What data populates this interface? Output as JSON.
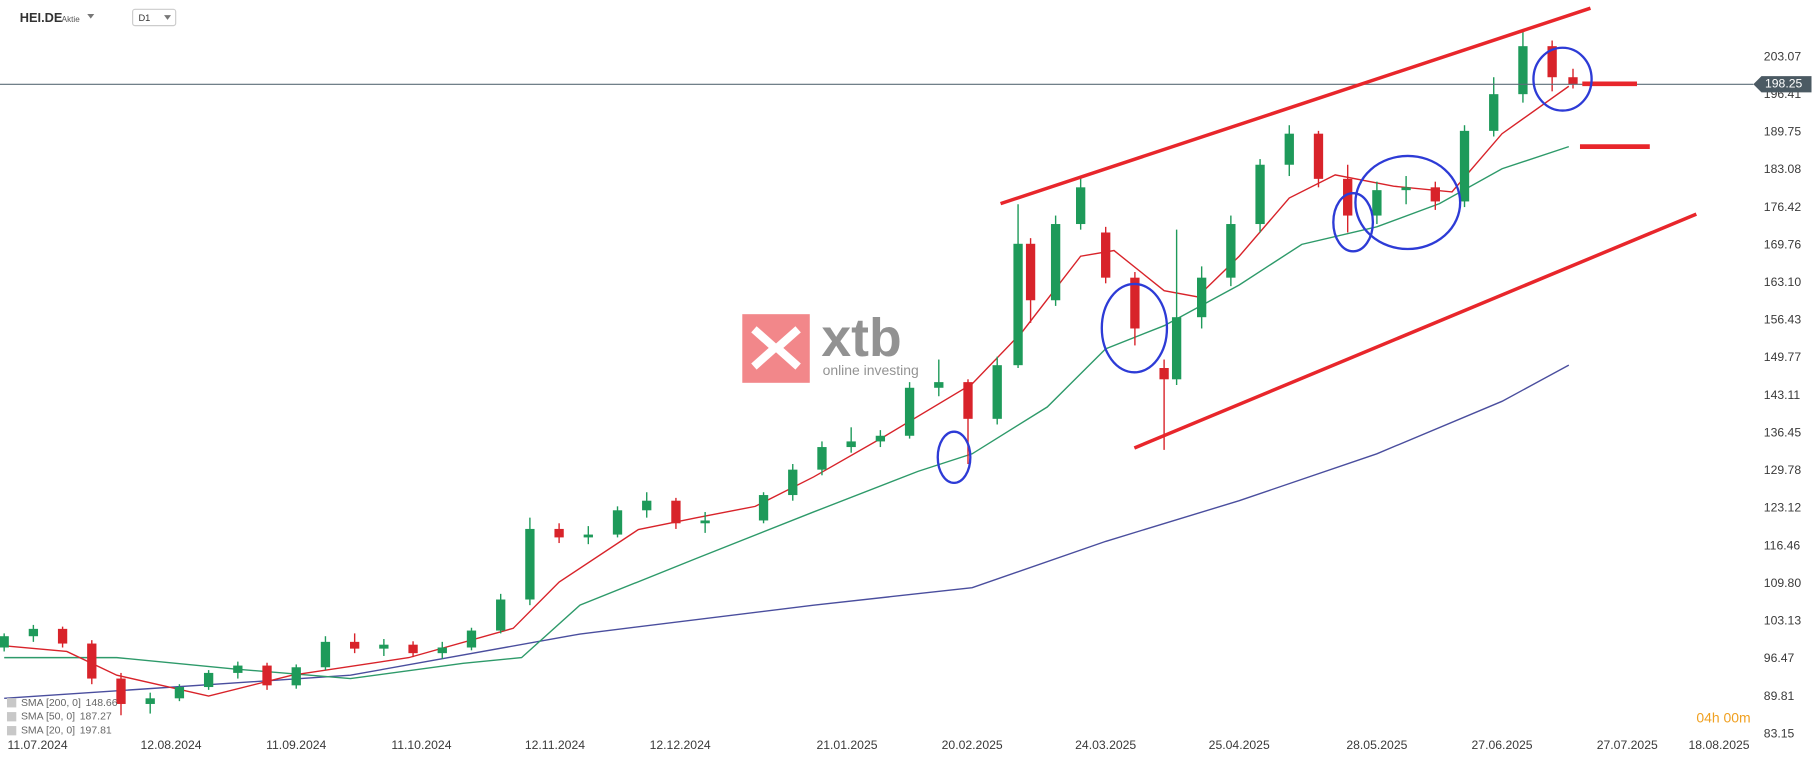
{
  "chart_data": {
    "type": "candlestick",
    "title": "HEI.DE",
    "subtitle": "Aktie",
    "interval": "D1",
    "countdown": "04h 00m",
    "watermark": {
      "brand": "xtb",
      "tagline": "online investing"
    },
    "up_color": "#1e9a5a",
    "down_color": "#d8232a",
    "xlim": [
      "02.07.2024",
      "10.09.2025"
    ],
    "xticks": [
      "11.07.2024",
      "12.08.2024",
      "11.09.2024",
      "11.10.2024",
      "12.11.2024",
      "12.12.2024",
      "21.01.2025",
      "20.02.2025",
      "24.03.2025",
      "25.04.2025",
      "28.05.2025",
      "27.06.2025",
      "27.07.2025",
      "18.08.2025"
    ],
    "ylim": [
      78.76,
      213.17
    ],
    "yticks": [
      203.07,
      196.41,
      189.75,
      183.08,
      176.42,
      169.76,
      {
        "value": 163.1,
        "label": "163.10"
      },
      156.43,
      149.77,
      143.11,
      136.45,
      129.78,
      123.12,
      116.46,
      {
        "value": 109.8,
        "label": "109.80"
      },
      103.13,
      96.47,
      89.81,
      83.15
    ],
    "candles": {
      "x": [
        "03.07.2024",
        "10.07.2024",
        "17.07.2024",
        "24.07.2024",
        "31.07.2024",
        "07.08.2024",
        "14.08.2024",
        "21.08.2024",
        "28.08.2024",
        "04.09.2024",
        "11.09.2024",
        "18.09.2024",
        "25.09.2024",
        "02.10.2024",
        "09.10.2024",
        "16.10.2024",
        "23.10.2024",
        "30.10.2024",
        "06.11.2024",
        "13.11.2024",
        "20.11.2024",
        "27.11.2024",
        "04.12.2024",
        "11.12.2024",
        "18.12.2024",
        "01.01.2025",
        "08.01.2025",
        "15.01.2025",
        "22.01.2025",
        "29.01.2025",
        "05.02.2025",
        "12.02.2025",
        "19.02.2025",
        "26.02.2025",
        "03.03.2025",
        "06.03.2025",
        "12.03.2025",
        "18.03.2025",
        "24.03.2025",
        "31.03.2025",
        "07.04.2025",
        "10.04.2025",
        "16.04.2025",
        "23.04.2025",
        "30.04.2025",
        "07.05.2025",
        "14.05.2025",
        "21.05.2025",
        "28.05.2025",
        "04.06.2025",
        "11.06.2025",
        "18.06.2025",
        "25.06.2025",
        "02.07.2025",
        "09.07.2025",
        "14.07.2025"
      ],
      "open": [
        98.5,
        100.5,
        101.8,
        99.2,
        93,
        88.5,
        89.5,
        91.5,
        94,
        95.3,
        91.8,
        95,
        99.5,
        98.3,
        99,
        97.5,
        98.5,
        101.5,
        107,
        119.5,
        118,
        118.5,
        122.8,
        124.5,
        120.5,
        121,
        125.5,
        130,
        134,
        135,
        136,
        144.5,
        145.5,
        139,
        148.5,
        170,
        160,
        173.5,
        172,
        164,
        148,
        146,
        157,
        164,
        173.5,
        184,
        189.5,
        181.5,
        175,
        179.5,
        180,
        177.5,
        190,
        196.5,
        205,
        199.5
      ],
      "high": [
        101,
        102.5,
        102.2,
        99.8,
        94,
        90.5,
        92,
        94.5,
        96,
        95.8,
        95.5,
        100.5,
        101,
        100,
        99.6,
        99.5,
        102,
        108,
        121.5,
        120.5,
        120,
        123.5,
        126,
        125,
        122.5,
        126,
        131,
        135,
        137.5,
        137,
        145.5,
        149.5,
        146,
        150,
        177,
        171,
        175,
        182,
        173,
        165,
        149.5,
        172.5,
        166,
        175,
        185,
        191,
        190,
        184,
        181,
        182,
        181,
        191,
        199.5,
        207.5,
        206,
        201
      ],
      "low": [
        97.8,
        99.5,
        98.5,
        92,
        86.5,
        86.8,
        89,
        91,
        93,
        91,
        91.2,
        94.5,
        97.5,
        97,
        96.8,
        96.5,
        98,
        101,
        106,
        117,
        116.8,
        118,
        121.5,
        119.5,
        118.8,
        120.5,
        124.5,
        129,
        133,
        134,
        135.5,
        143,
        131,
        138,
        148,
        156,
        159,
        172.5,
        163,
        152,
        133.5,
        145,
        155,
        162.5,
        172,
        182,
        180,
        172,
        173.5,
        177,
        176,
        176.5,
        189,
        195,
        197,
        197.5
      ],
      "close": [
        100.5,
        101.8,
        99.2,
        93,
        88.5,
        89.5,
        91.5,
        94,
        95.3,
        91.8,
        95,
        99.5,
        98.3,
        99,
        97.5,
        98.5,
        101.5,
        107,
        119.5,
        118,
        118.5,
        122.8,
        124.5,
        120.5,
        121,
        125.5,
        130,
        134,
        135,
        136,
        144.5,
        145.5,
        139,
        148.5,
        170,
        160,
        173.5,
        180,
        164,
        155,
        146,
        157,
        164,
        173.5,
        184,
        189.5,
        181.5,
        175,
        179.5,
        180,
        177.5,
        190,
        196.5,
        205,
        199.5,
        198.25
      ]
    },
    "series": [
      {
        "name": "SMA [200, 0]",
        "legend_value": 148.66,
        "color": "#4a4e9e",
        "x": [
          "03.07.2024",
          "24.09.2024",
          "18.11.2024",
          "13.01.2025",
          "20.02.2025",
          "24.03.2025",
          "25.04.2025",
          "28.05.2025",
          "27.06.2025",
          "13.07.2025"
        ],
        "values": [
          89.5,
          93.6,
          100.9,
          106,
          109.1,
          117.3,
          124.5,
          132.8,
          142.1,
          148.5
        ]
      },
      {
        "name": "SMA [50, 0]",
        "legend_value": 187.27,
        "color": "#2e9a6a",
        "x": [
          "03.07.2024",
          "30.07.2024",
          "27.08.2024",
          "24.09.2024",
          "21.10.2024",
          "04.11.2024",
          "18.11.2024",
          "16.12.2024",
          "13.01.2025",
          "07.02.2025",
          "20.02.2025",
          "10.03.2025",
          "24.03.2025",
          "07.04.2025",
          "25.04.2025",
          "10.05.2025",
          "28.05.2025",
          "12.06.2025",
          "27.06.2025",
          "13.07.2025"
        ],
        "values": [
          96.7,
          96.7,
          94.7,
          93,
          95.7,
          96.7,
          106,
          114.3,
          122.5,
          129.7,
          132.8,
          141.1,
          151.4,
          155.5,
          162.7,
          169.9,
          173,
          177.1,
          183.3,
          187.2
        ]
      },
      {
        "name": "SMA [20, 0]",
        "legend_value": 197.81,
        "color": "#d8232a",
        "x": [
          "03.07.2024",
          "18.07.2024",
          "30.07.2024",
          "21.08.2024",
          "10.09.2024",
          "08.10.2024",
          "02.11.2024",
          "13.11.2024",
          "02.12.2024",
          "16.12.2024",
          "30.12.2024",
          "13.01.2025",
          "30.01.2025",
          "20.02.2025",
          "04.03.2025",
          "18.03.2025",
          "26.03.2025",
          "07.04.2025",
          "15.04.2025",
          "25.04.2025",
          "07.05.2025",
          "18.05.2025",
          "01.06.2025",
          "15.06.2025",
          "27.06.2025",
          "13.07.2025"
        ],
        "values": [
          98.8,
          97.8,
          93.6,
          89.9,
          93.6,
          96.7,
          101.9,
          110.1,
          119.4,
          121.5,
          123.5,
          128.7,
          135.9,
          145.2,
          154.4,
          167.8,
          168.8,
          161.7,
          160.6,
          167.8,
          178.1,
          182.2,
          180.2,
          179.2,
          189.5,
          197.9
        ]
      }
    ]
  }
}
